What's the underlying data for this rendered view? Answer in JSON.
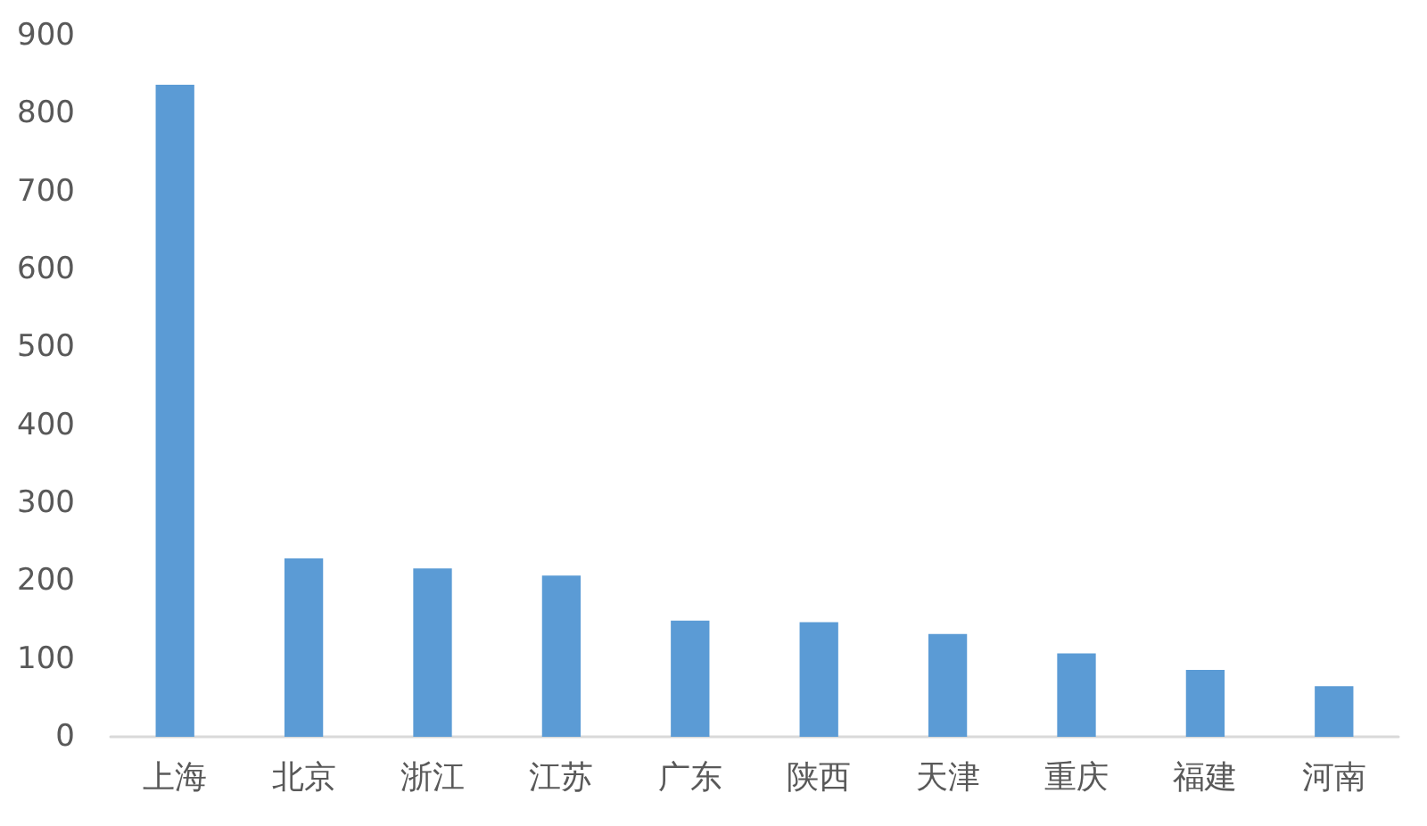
{
  "chart_data": {
    "type": "bar",
    "categories": [
      "上海",
      "北京",
      "浙江",
      "江苏",
      "广东",
      "陕西",
      "天津",
      "重庆",
      "福建",
      "河南"
    ],
    "values": [
      837,
      229,
      216,
      207,
      149,
      147,
      132,
      107,
      86,
      65
    ],
    "color": "#5b9bd5",
    "ylim": [
      0,
      900
    ],
    "yticks": [
      0,
      100,
      200,
      300,
      400,
      500,
      600,
      700,
      800,
      900
    ],
    "grid": false
  }
}
